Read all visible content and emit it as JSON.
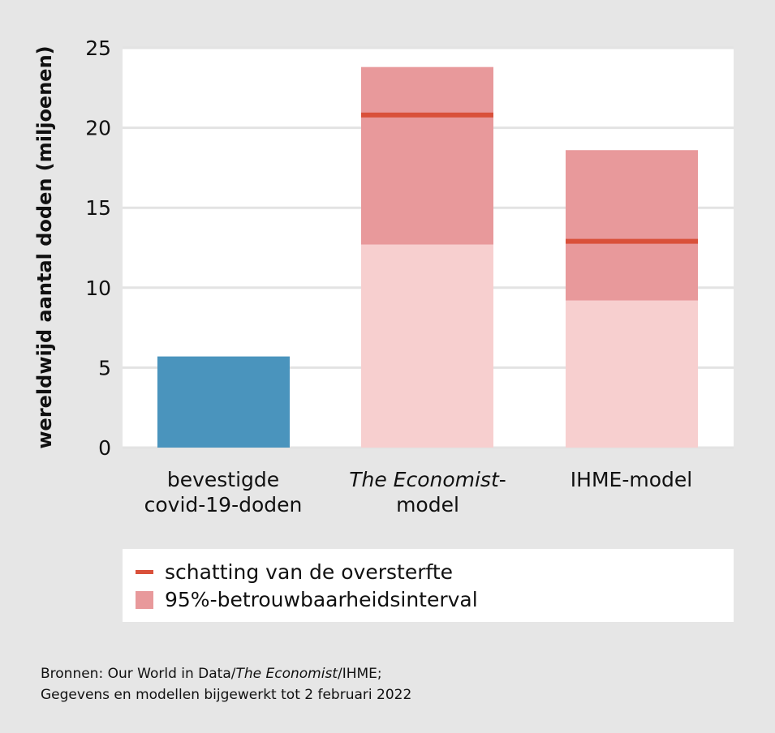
{
  "chart_data": {
    "type": "bar",
    "ylabel": "wereldwijd aantal doden (miljoenen)",
    "ylim": [
      0,
      25
    ],
    "yticks": [
      0,
      5,
      10,
      15,
      20,
      25
    ],
    "grid": true,
    "categories": [
      {
        "line1": "bevestigde",
        "line2": "covid-19-doden",
        "line1_italic": false
      },
      {
        "line1": "The Economist",
        "line1_suffix": "-",
        "line2": "model",
        "line1_italic": true
      },
      {
        "line1": "IHME-model",
        "line2": "",
        "line1_italic": false
      }
    ],
    "confirmed": {
      "value": 5.7
    },
    "models": [
      {
        "category_index": 1,
        "lower": 12.7,
        "estimate": 20.8,
        "upper": 23.8
      },
      {
        "category_index": 2,
        "lower": 9.2,
        "estimate": 12.9,
        "upper": 18.6
      }
    ],
    "legend": {
      "estimate_label": "schatting van de oversterfte",
      "interval_label": "95%-betrouwbaarheidsinterval",
      "placement": "bottom"
    },
    "colors": {
      "confirmed": "#4a94bd",
      "interval": "#e8999b",
      "below_interval": "#f7cfcf",
      "estimate": "#d9503a"
    }
  },
  "source": {
    "prefix": "Bronnen: Our World in Data/",
    "italic": "The Economist",
    "suffix": "/IHME;",
    "line2": "Gegevens en modellen bijgewerkt tot 2 februari 2022"
  }
}
